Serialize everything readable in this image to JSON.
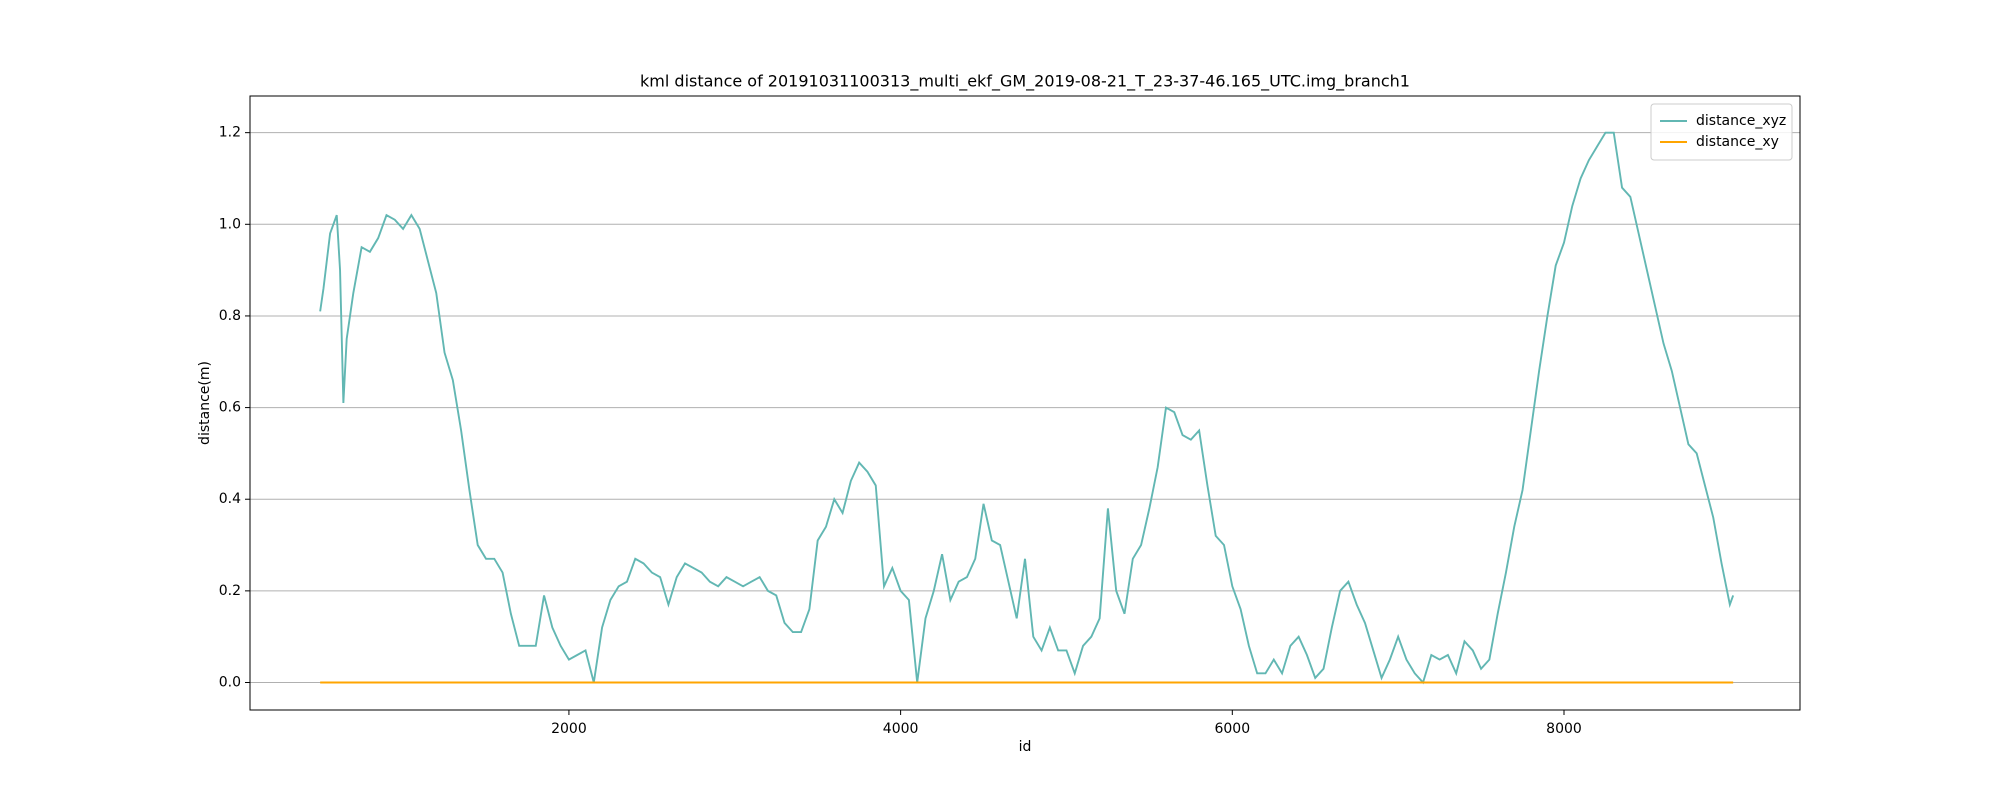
{
  "chart_data": {
    "type": "line",
    "title": "kml distance of 20191031100313_multi_ekf_GM_2019-08-21_T_23-37-46.165_UTC.img_branch1",
    "x_label": "id",
    "y_label": "distance(m)",
    "x": [
      500,
      520,
      560,
      600,
      620,
      640,
      660,
      700,
      750,
      800,
      850,
      900,
      950,
      1000,
      1050,
      1100,
      1150,
      1200,
      1250,
      1300,
      1350,
      1400,
      1450,
      1500,
      1550,
      1600,
      1650,
      1700,
      1750,
      1800,
      1850,
      1900,
      1950,
      2000,
      2050,
      2100,
      2150,
      2200,
      2250,
      2300,
      2350,
      2400,
      2450,
      2500,
      2550,
      2600,
      2650,
      2700,
      2750,
      2800,
      2850,
      2900,
      2950,
      3000,
      3050,
      3100,
      3150,
      3200,
      3250,
      3300,
      3350,
      3400,
      3450,
      3500,
      3550,
      3600,
      3650,
      3700,
      3750,
      3800,
      3850,
      3900,
      3950,
      4000,
      4050,
      4100,
      4150,
      4200,
      4250,
      4300,
      4350,
      4400,
      4450,
      4500,
      4550,
      4600,
      4650,
      4700,
      4750,
      4800,
      4850,
      4900,
      4950,
      5000,
      5050,
      5100,
      5150,
      5200,
      5250,
      5300,
      5350,
      5400,
      5450,
      5500,
      5550,
      5600,
      5650,
      5700,
      5750,
      5800,
      5850,
      5900,
      5950,
      6000,
      6050,
      6100,
      6150,
      6200,
      6250,
      6300,
      6350,
      6400,
      6450,
      6500,
      6550,
      6600,
      6650,
      6700,
      6750,
      6800,
      6850,
      6900,
      6950,
      7000,
      7050,
      7100,
      7150,
      7200,
      7250,
      7300,
      7350,
      7400,
      7450,
      7500,
      7550,
      7600,
      7650,
      7700,
      7750,
      7800,
      7850,
      7900,
      7950,
      8000,
      8050,
      8100,
      8150,
      8200,
      8250,
      8300,
      8350,
      8400,
      8450,
      8500,
      8550,
      8600,
      8650,
      8700,
      8750,
      8800,
      8850,
      8900,
      8950,
      9000,
      9020
    ],
    "series": [
      {
        "name": "distance_xyz",
        "color": "#62b7b3",
        "values": [
          0.81,
          0.86,
          0.98,
          1.02,
          0.9,
          0.61,
          0.75,
          0.85,
          0.95,
          0.94,
          0.97,
          1.02,
          1.01,
          0.99,
          1.02,
          0.99,
          0.92,
          0.85,
          0.72,
          0.66,
          0.55,
          0.42,
          0.3,
          0.27,
          0.27,
          0.24,
          0.15,
          0.08,
          0.08,
          0.08,
          0.19,
          0.12,
          0.08,
          0.05,
          0.06,
          0.07,
          0.0,
          0.12,
          0.18,
          0.21,
          0.22,
          0.27,
          0.26,
          0.24,
          0.23,
          0.17,
          0.23,
          0.26,
          0.25,
          0.24,
          0.22,
          0.21,
          0.23,
          0.22,
          0.21,
          0.22,
          0.23,
          0.2,
          0.19,
          0.13,
          0.11,
          0.11,
          0.16,
          0.31,
          0.34,
          0.4,
          0.37,
          0.44,
          0.48,
          0.46,
          0.43,
          0.21,
          0.25,
          0.2,
          0.18,
          0.0,
          0.14,
          0.2,
          0.28,
          0.18,
          0.22,
          0.23,
          0.27,
          0.39,
          0.31,
          0.3,
          0.22,
          0.14,
          0.27,
          0.1,
          0.07,
          0.12,
          0.07,
          0.07,
          0.02,
          0.08,
          0.1,
          0.14,
          0.38,
          0.2,
          0.15,
          0.27,
          0.3,
          0.38,
          0.47,
          0.6,
          0.59,
          0.54,
          0.53,
          0.55,
          0.43,
          0.32,
          0.3,
          0.21,
          0.16,
          0.08,
          0.02,
          0.02,
          0.05,
          0.02,
          0.08,
          0.1,
          0.06,
          0.01,
          0.03,
          0.12,
          0.2,
          0.22,
          0.17,
          0.13,
          0.07,
          0.01,
          0.05,
          0.1,
          0.05,
          0.02,
          0.0,
          0.06,
          0.05,
          0.06,
          0.02,
          0.09,
          0.07,
          0.03,
          0.05,
          0.15,
          0.24,
          0.34,
          0.42,
          0.55,
          0.68,
          0.8,
          0.91,
          0.96,
          1.04,
          1.1,
          1.14,
          1.17,
          1.2,
          1.2,
          1.08,
          1.06,
          0.98,
          0.9,
          0.82,
          0.74,
          0.68,
          0.6,
          0.52,
          0.5,
          0.43,
          0.36,
          0.26,
          0.17,
          0.19
        ]
      },
      {
        "name": "distance_xy",
        "color": "#ffa500",
        "values": [
          0,
          0,
          0,
          0,
          0,
          0,
          0,
          0,
          0,
          0,
          0,
          0,
          0,
          0,
          0,
          0,
          0,
          0,
          0,
          0,
          0,
          0,
          0,
          0,
          0,
          0,
          0,
          0,
          0,
          0,
          0,
          0,
          0,
          0,
          0,
          0,
          0,
          0,
          0,
          0,
          0,
          0,
          0,
          0,
          0,
          0,
          0,
          0,
          0,
          0,
          0,
          0,
          0,
          0,
          0,
          0,
          0,
          0,
          0,
          0,
          0,
          0,
          0,
          0,
          0,
          0,
          0,
          0,
          0,
          0,
          0,
          0,
          0,
          0,
          0,
          0,
          0,
          0,
          0,
          0,
          0,
          0,
          0,
          0,
          0,
          0,
          0,
          0,
          0,
          0,
          0,
          0,
          0,
          0,
          0,
          0,
          0,
          0,
          0,
          0,
          0,
          0,
          0,
          0,
          0,
          0,
          0,
          0,
          0,
          0,
          0,
          0,
          0,
          0,
          0,
          0,
          0,
          0,
          0,
          0,
          0,
          0,
          0,
          0,
          0,
          0,
          0,
          0,
          0,
          0,
          0,
          0,
          0,
          0,
          0,
          0,
          0,
          0,
          0,
          0,
          0,
          0,
          0,
          0,
          0,
          0,
          0,
          0,
          0,
          0,
          0,
          0,
          0,
          0,
          0,
          0,
          0,
          0,
          0,
          0,
          0,
          0,
          0,
          0,
          0,
          0,
          0,
          0,
          0,
          0,
          0,
          0,
          0,
          0,
          0
        ]
      }
    ],
    "xlim": [
      77,
      9423
    ],
    "ylim": [
      -0.06,
      1.28
    ],
    "xticks": [
      2000,
      4000,
      6000,
      8000
    ],
    "yticks": [
      {
        "value": 0,
        "label": "0.0"
      },
      0.2,
      0.4,
      0.6,
      0.8,
      {
        "value": 1,
        "label": "1.0"
      },
      1.2
    ],
    "grid": "y",
    "legend": "upper right"
  }
}
